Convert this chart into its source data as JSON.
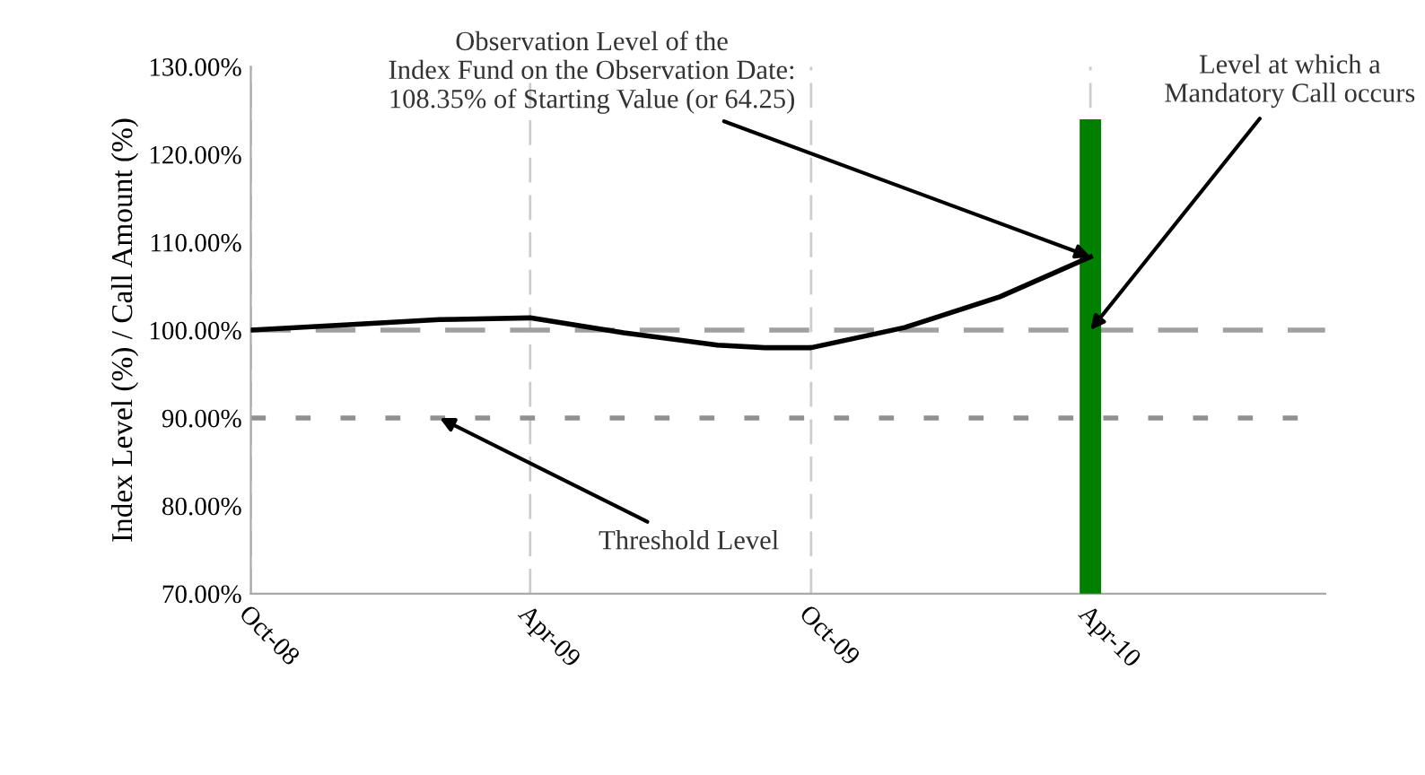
{
  "chart_data": {
    "type": "line",
    "ylabel": "Index Level (%) / Call Amount (%)",
    "series": [
      {
        "type": "bar",
        "color": "#008000",
        "x": [
          "2010-04"
        ],
        "values": [
          124
        ]
      },
      {
        "color": "#000000",
        "x": [
          "2008-10",
          "2008-12",
          "2009-02",
          "2009-04",
          "2009-06",
          "2009-08",
          "2009-09",
          "2009-10",
          "2009-12",
          "2010-02",
          "2010-04"
        ],
        "values": [
          100,
          100.6,
          101.2,
          101.4,
          99.7,
          98.3,
          98.0,
          98.0,
          100.3,
          103.8,
          108.35
        ]
      }
    ],
    "xlim": [
      "2008-10",
      "2010-09"
    ],
    "xticks": [
      {
        "value": "2008-10",
        "label": "Oct-08"
      },
      {
        "value": "2009-04",
        "label": "Apr-09"
      },
      {
        "value": "2009-10",
        "label": "Oct-09"
      },
      {
        "value": "2010-04",
        "label": "Apr-10"
      }
    ],
    "ylim": [
      70,
      130
    ],
    "yticks": [
      {
        "value": 70,
        "label": "70.00%"
      },
      {
        "value": 80,
        "label": "80.00%"
      },
      {
        "value": 90,
        "label": "90.00%"
      },
      {
        "value": 100,
        "label": "100.00%"
      },
      {
        "value": 110,
        "label": "110.00%"
      },
      {
        "value": 120,
        "label": "120.00%"
      },
      {
        "value": 130,
        "label": "130.00%"
      }
    ],
    "grid": "x",
    "ref_lines": [
      {
        "axis": "y",
        "value": 100,
        "color": "#a0a0a0",
        "line_style": "dashed"
      },
      {
        "axis": "y",
        "value": 90,
        "color": "#909090",
        "line_style": "dotted"
      }
    ],
    "annotations": [
      {
        "text": "Observation Level of the\nIndex Fund on the Observation Date:\n108.35% of Starting Value (or 64.25)",
        "x": "2010-04",
        "y": 108.35
      },
      {
        "text": "Level at which a\nMandatory Call occurs",
        "x": "2010-04",
        "y": 100
      },
      {
        "text": "Threshold Level",
        "x": "2009-02",
        "y": 90
      }
    ]
  }
}
